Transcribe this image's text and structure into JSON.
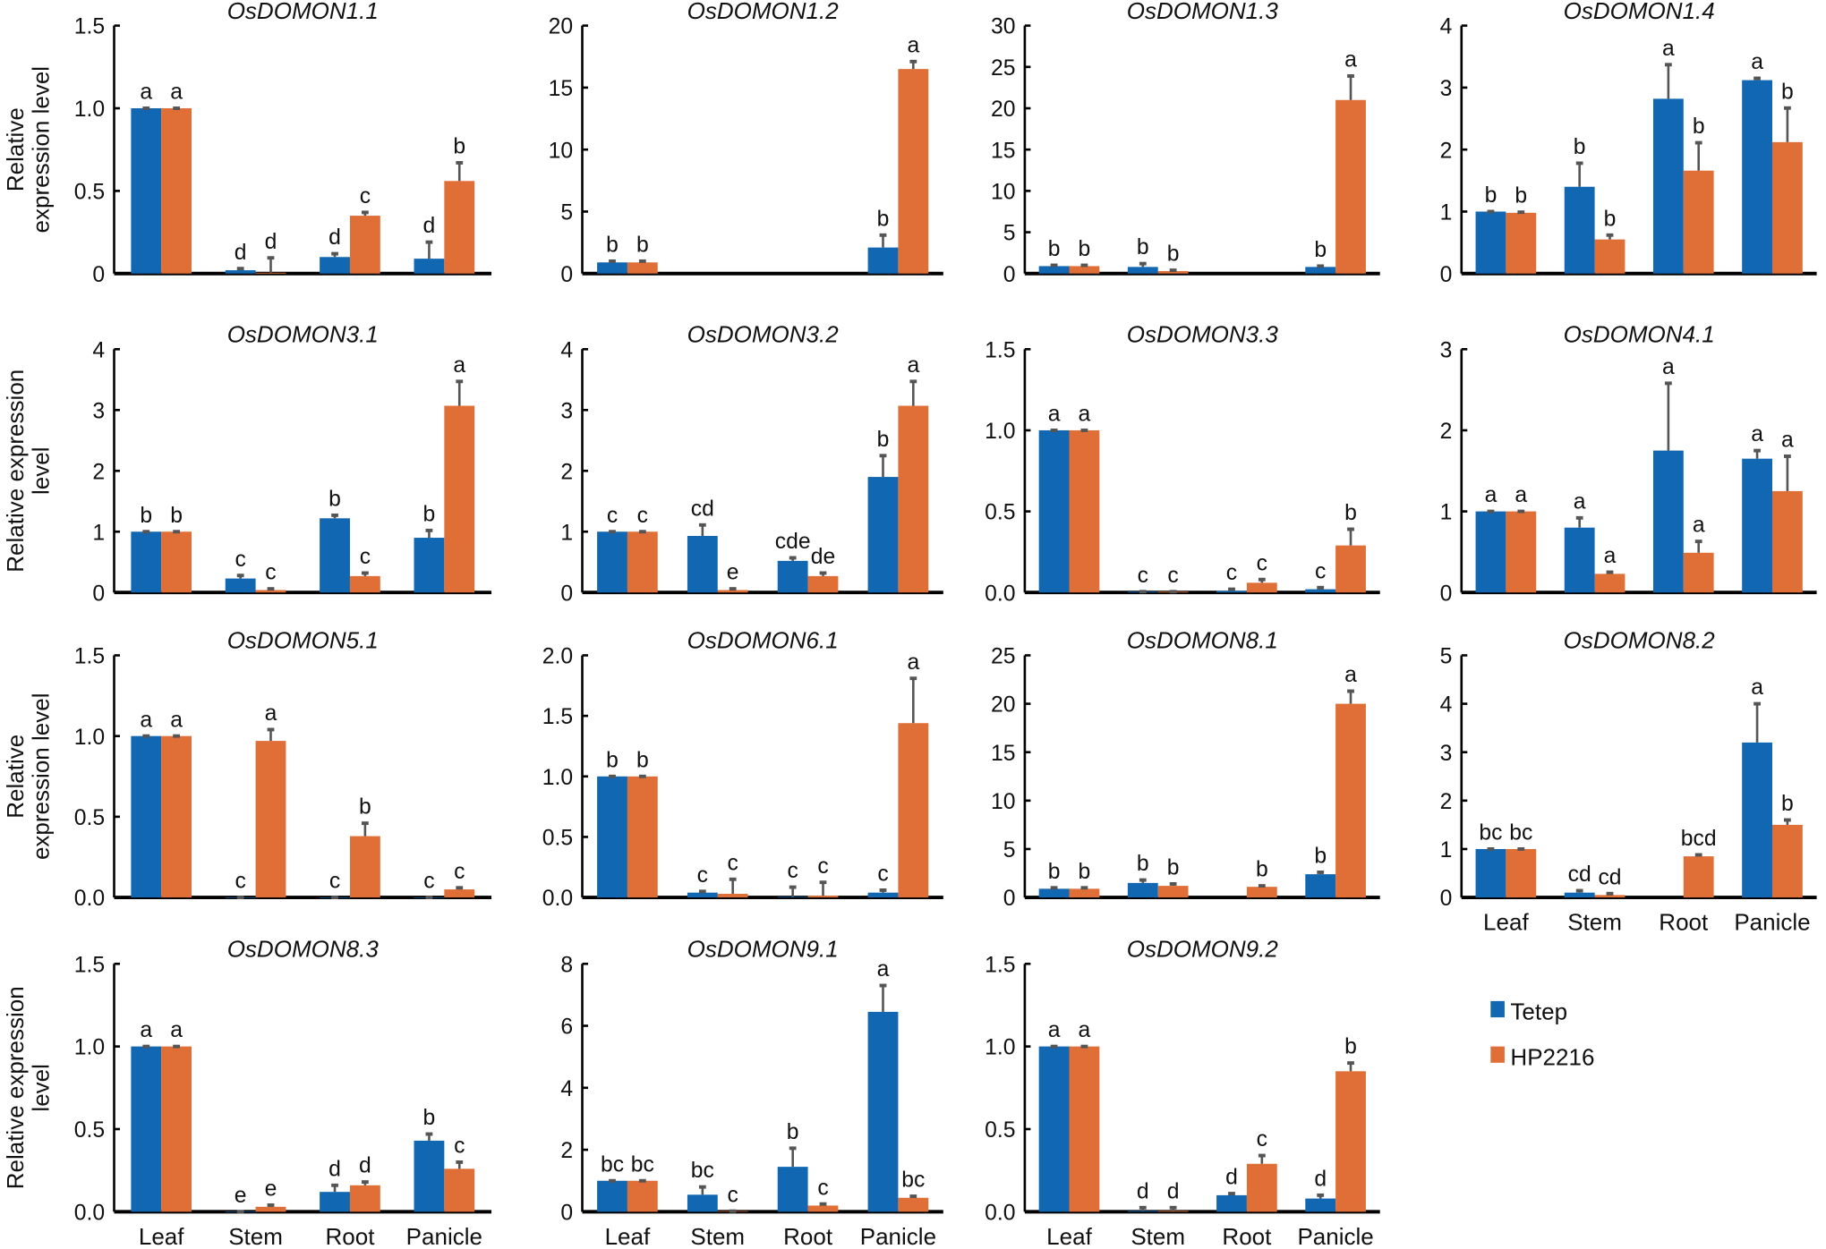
{
  "chart_data": {
    "type": "bar",
    "categories": [
      "Leaf",
      "Stem",
      "Root",
      "Panicle"
    ],
    "series_names": [
      "Tetep",
      "HP2216"
    ],
    "colors": {
      "Tetep": "#1167B1",
      "HP2216": "#E06F37",
      "error": "#555555"
    },
    "legend": {
      "placement": "bottom-right",
      "entries": [
        "Tetep",
        "HP2216"
      ]
    },
    "panels": [
      {
        "title": "OsDOMON1.1",
        "ylabel": [
          "Relative",
          "expression level"
        ],
        "ylim": [
          0,
          1.5
        ],
        "ticks": [
          0,
          0.5,
          1.0,
          1.5
        ],
        "tick_labels": [
          "0",
          "0.5",
          "1.0",
          "1.5"
        ],
        "show_xlabels": false,
        "tetep": [
          1,
          0.02,
          0.1,
          0.09
        ],
        "tetep_err": [
          0,
          0.01,
          0.02,
          0.1
        ],
        "hp": [
          1,
          0.005,
          0.35,
          0.56
        ],
        "hp_err": [
          0,
          0.09,
          0.02,
          0.11
        ],
        "tetep_letters": [
          "a",
          "d",
          "d",
          "d"
        ],
        "hp_letters": [
          "a",
          "d",
          "c",
          "b"
        ]
      },
      {
        "title": "OsDOMON1.2",
        "ylabel": [],
        "ylim": [
          0,
          20
        ],
        "ticks": [
          0,
          5,
          10,
          15,
          20
        ],
        "tick_labels": [
          "0",
          "5",
          "10",
          "15",
          "20"
        ],
        "show_xlabels": false,
        "tetep": [
          0.9,
          null,
          null,
          2.1
        ],
        "tetep_err": [
          0.1,
          0,
          0,
          1.0
        ],
        "hp": [
          0.9,
          null,
          null,
          16.5
        ],
        "hp_err": [
          0.1,
          0,
          0,
          0.6
        ],
        "tetep_letters": [
          "b",
          "",
          "",
          "b"
        ],
        "hp_letters": [
          "b",
          "",
          "",
          "a"
        ]
      },
      {
        "title": "OsDOMON1.3",
        "ylabel": [],
        "ylim": [
          0,
          30
        ],
        "ticks": [
          0,
          5,
          10,
          15,
          20,
          25,
          30
        ],
        "tick_labels": [
          "0",
          "5",
          "10",
          "15",
          "20",
          "25",
          "30"
        ],
        "show_xlabels": false,
        "tetep": [
          0.9,
          0.8,
          null,
          0.8
        ],
        "tetep_err": [
          0.1,
          0.4,
          0,
          0.1
        ],
        "hp": [
          0.9,
          0.3,
          null,
          21
        ],
        "hp_err": [
          0.1,
          0.1,
          0,
          2.9
        ],
        "tetep_letters": [
          "b",
          "b",
          "",
          "b"
        ],
        "hp_letters": [
          "b",
          "b",
          "",
          "a"
        ]
      },
      {
        "title": "OsDOMON1.4",
        "ylabel": [],
        "ylim": [
          0,
          4
        ],
        "ticks": [
          0,
          1,
          2,
          3,
          4
        ],
        "tick_labels": [
          "0",
          "1",
          "2",
          "3",
          "4"
        ],
        "show_xlabels": false,
        "tetep": [
          1,
          1.4,
          2.82,
          3.12
        ],
        "tetep_err": [
          0,
          0.38,
          0.55,
          0.03
        ],
        "hp": [
          0.98,
          0.55,
          1.66,
          2.12
        ],
        "hp_err": [
          0.01,
          0.07,
          0.45,
          0.55
        ],
        "tetep_letters": [
          "b",
          "b",
          "a",
          "a"
        ],
        "hp_letters": [
          "b",
          "b",
          "b",
          "b"
        ]
      },
      {
        "title": "OsDOMON3.1",
        "ylabel": [
          "Relative expression",
          "level"
        ],
        "ylim": [
          0,
          4
        ],
        "ticks": [
          0,
          1,
          2,
          3,
          4
        ],
        "tick_labels": [
          "0",
          "1",
          "2",
          "3",
          "4"
        ],
        "show_xlabels": false,
        "tetep": [
          1,
          0.23,
          1.22,
          0.9
        ],
        "tetep_err": [
          0,
          0.05,
          0.05,
          0.12
        ],
        "hp": [
          1,
          0.04,
          0.27,
          3.07
        ],
        "hp_err": [
          0,
          0.02,
          0.05,
          0.4
        ],
        "tetep_letters": [
          "b",
          "c",
          "b",
          "b"
        ],
        "hp_letters": [
          "b",
          "c",
          "c",
          "a"
        ]
      },
      {
        "title": "OsDOMON3.2",
        "ylabel": [],
        "ylim": [
          0,
          4
        ],
        "ticks": [
          0,
          1,
          2,
          3,
          4
        ],
        "tick_labels": [
          "0",
          "1",
          "2",
          "3",
          "4"
        ],
        "show_xlabels": false,
        "tetep": [
          1,
          0.93,
          0.52,
          1.9
        ],
        "tetep_err": [
          0,
          0.18,
          0.05,
          0.35
        ],
        "hp": [
          1,
          0.04,
          0.27,
          3.07
        ],
        "hp_err": [
          0,
          0.02,
          0.05,
          0.4
        ],
        "tetep_letters": [
          "c",
          "cd",
          "cde",
          "b"
        ],
        "hp_letters": [
          "c",
          "e",
          "de",
          "a"
        ]
      },
      {
        "title": "OsDOMON3.3",
        "ylabel": [],
        "ylim": [
          0,
          1.5
        ],
        "ticks": [
          0,
          0.5,
          1.0,
          1.5
        ],
        "tick_labels": [
          "0.0",
          "0.5",
          "1.0",
          "1.5"
        ],
        "show_xlabels": false,
        "tetep": [
          1,
          0.005,
          0.01,
          0.02
        ],
        "tetep_err": [
          0,
          0,
          0.01,
          0.01
        ],
        "hp": [
          1,
          0.005,
          0.06,
          0.29
        ],
        "hp_err": [
          0,
          0,
          0.02,
          0.1
        ],
        "tetep_letters": [
          "a",
          "c",
          "c",
          "c"
        ],
        "hp_letters": [
          "a",
          "c",
          "c",
          "b"
        ]
      },
      {
        "title": "OsDOMON4.1",
        "ylabel": [],
        "ylim": [
          0,
          3
        ],
        "ticks": [
          0,
          1,
          2,
          3
        ],
        "tick_labels": [
          "0",
          "1",
          "2",
          "3"
        ],
        "show_xlabels": false,
        "tetep": [
          1,
          0.8,
          1.75,
          1.65
        ],
        "tetep_err": [
          0,
          0.12,
          0.83,
          0.1
        ],
        "hp": [
          1,
          0.23,
          0.49,
          1.25
        ],
        "hp_err": [
          0,
          0.02,
          0.14,
          0.43
        ],
        "tetep_letters": [
          "a",
          "a",
          "a",
          "a"
        ],
        "hp_letters": [
          "a",
          "a",
          "a",
          "a"
        ]
      },
      {
        "title": "OsDOMON5.1",
        "ylabel": [
          "Relative",
          "expression level"
        ],
        "ylim": [
          0,
          1.5
        ],
        "ticks": [
          0,
          0.5,
          1.0,
          1.5
        ],
        "tick_labels": [
          "0.0",
          "0.5",
          "1.0",
          "1.5"
        ],
        "show_xlabels": false,
        "tetep": [
          1,
          0,
          0,
          0
        ],
        "tetep_err": [
          0,
          0,
          0,
          0
        ],
        "hp": [
          1,
          0.97,
          0.38,
          0.05
        ],
        "hp_err": [
          0,
          0.07,
          0.08,
          0.01
        ],
        "tetep_letters": [
          "a",
          "c",
          "c",
          "c"
        ],
        "hp_letters": [
          "a",
          "a",
          "b",
          "c"
        ]
      },
      {
        "title": "OsDOMON6.1",
        "ylabel": [],
        "ylim": [
          0,
          2.0
        ],
        "ticks": [
          0,
          0.5,
          1.0,
          1.5,
          2.0
        ],
        "tick_labels": [
          "0.0",
          "0.5",
          "1.0",
          "1.5",
          "2.0"
        ],
        "show_xlabels": false,
        "tetep": [
          1,
          0.04,
          0.005,
          0.04
        ],
        "tetep_err": [
          0,
          0.01,
          0.08,
          0.02
        ],
        "hp": [
          1,
          0.03,
          0.015,
          1.44
        ],
        "hp_err": [
          0,
          0.12,
          0.11,
          0.37
        ],
        "tetep_letters": [
          "b",
          "c",
          "c",
          "c"
        ],
        "hp_letters": [
          "b",
          "c",
          "c",
          "a"
        ]
      },
      {
        "title": "OsDOMON8.1",
        "ylabel": [],
        "ylim": [
          0,
          25
        ],
        "ticks": [
          0,
          5,
          10,
          15,
          20,
          25
        ],
        "tick_labels": [
          "0",
          "5",
          "10",
          "15",
          "20",
          "25"
        ],
        "show_xlabels": false,
        "tetep": [
          0.9,
          1.5,
          null,
          2.4
        ],
        "tetep_err": [
          0.1,
          0.3,
          0,
          0.2
        ],
        "hp": [
          0.9,
          1.2,
          1.1,
          20
        ],
        "hp_err": [
          0.1,
          0.2,
          0.1,
          1.3
        ],
        "tetep_letters": [
          "b",
          "b",
          "",
          "b"
        ],
        "hp_letters": [
          "b",
          "b",
          "b",
          "a"
        ]
      },
      {
        "title": "OsDOMON8.2",
        "ylabel": [],
        "ylim": [
          0,
          5
        ],
        "ticks": [
          0,
          1,
          2,
          3,
          4,
          5
        ],
        "tick_labels": [
          "0",
          "1",
          "2",
          "3",
          "4",
          "5"
        ],
        "show_xlabels": true,
        "tetep": [
          1,
          0.1,
          null,
          3.2
        ],
        "tetep_err": [
          0,
          0.04,
          0,
          0.8
        ],
        "hp": [
          1,
          0.05,
          0.85,
          1.5
        ],
        "hp_err": [
          0,
          0.03,
          0.03,
          0.1
        ],
        "tetep_letters": [
          "bc",
          "cd",
          "",
          "a"
        ],
        "hp_letters": [
          "bc",
          "cd",
          "bcd",
          "b"
        ]
      },
      {
        "title": "OsDOMON8.3",
        "ylabel": [
          "Relative expression",
          "level"
        ],
        "ylim": [
          0,
          1.5
        ],
        "ticks": [
          0,
          0.5,
          1.0,
          1.5
        ],
        "tick_labels": [
          "0.0",
          "0.5",
          "1.0",
          "1.5"
        ],
        "show_xlabels": true,
        "tetep": [
          1,
          0,
          0.12,
          0.43
        ],
        "tetep_err": [
          0,
          0,
          0.04,
          0.04
        ],
        "hp": [
          1,
          0.03,
          0.16,
          0.26
        ],
        "hp_err": [
          0,
          0.01,
          0.02,
          0.04
        ],
        "tetep_letters": [
          "a",
          "e",
          "d",
          "b"
        ],
        "hp_letters": [
          "a",
          "e",
          "d",
          "c"
        ]
      },
      {
        "title": "OsDOMON9.1",
        "ylabel": [],
        "ylim": [
          0,
          8
        ],
        "ticks": [
          0,
          2,
          4,
          6,
          8
        ],
        "tick_labels": [
          "0",
          "2",
          "4",
          "6",
          "8"
        ],
        "show_xlabels": true,
        "tetep": [
          1,
          0.55,
          1.45,
          6.45
        ],
        "tetep_err": [
          0,
          0.25,
          0.6,
          0.85
        ],
        "hp": [
          1,
          0.02,
          0.2,
          0.45
        ],
        "hp_err": [
          0,
          0,
          0.05,
          0.05
        ],
        "tetep_letters": [
          "bc",
          "bc",
          "b",
          "a"
        ],
        "hp_letters": [
          "bc",
          "c",
          "c",
          "bc"
        ]
      },
      {
        "title": "OsDOMON9.2",
        "ylabel": [],
        "ylim": [
          0,
          1.5
        ],
        "ticks": [
          0,
          0.5,
          1.0,
          1.5
        ],
        "tick_labels": [
          "0.0",
          "0.5",
          "1.0",
          "1.5"
        ],
        "show_xlabels": true,
        "tetep": [
          1,
          0.005,
          0.1,
          0.08
        ],
        "tetep_err": [
          0,
          0.02,
          0.01,
          0.02
        ],
        "hp": [
          1,
          0.005,
          0.29,
          0.85
        ],
        "hp_err": [
          0,
          0.02,
          0.05,
          0.05
        ],
        "tetep_letters": [
          "a",
          "d",
          "d",
          "d"
        ],
        "hp_letters": [
          "a",
          "d",
          "c",
          "b"
        ]
      }
    ]
  }
}
